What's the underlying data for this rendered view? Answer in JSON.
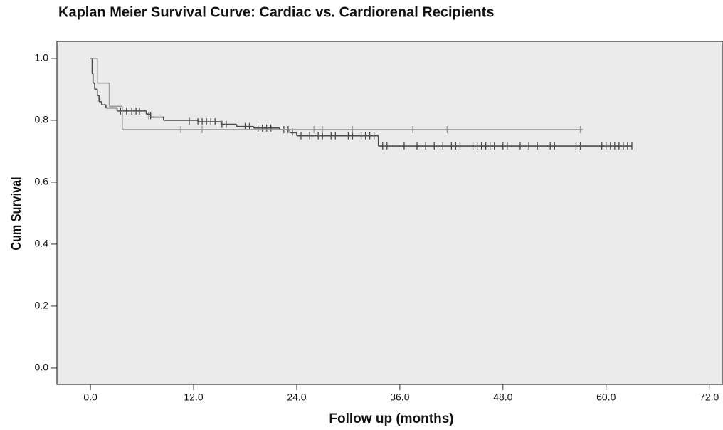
{
  "chart_data": {
    "type": "kaplan-meier",
    "title": "Kaplan Meier Survival Curve: Cardiac vs. Cardiorenal Recipients",
    "x_label": "Follow up (months)",
    "y_label": "Cum Survival",
    "xlim": [
      -3.9,
      73.6
    ],
    "ylim": [
      -0.053,
      1.055
    ],
    "xticks": [
      {
        "value": 0,
        "label": "0.0"
      },
      {
        "value": 12,
        "label": "12.0"
      },
      {
        "value": 24,
        "label": "24.0"
      },
      {
        "value": 36,
        "label": "36.0"
      },
      {
        "value": 48,
        "label": "48.0"
      },
      {
        "value": 60,
        "label": "60.0"
      },
      {
        "value": 72,
        "label": "72.0"
      }
    ],
    "yticks": [
      {
        "value": 0,
        "label": "0.0"
      },
      {
        "value": 0.2,
        "label": "0.2"
      },
      {
        "value": 0.4,
        "label": "0.4"
      },
      {
        "value": 0.6,
        "label": "0.6"
      },
      {
        "value": 0.8,
        "label": "0.8"
      },
      {
        "value": 1,
        "label": "1.0"
      }
    ],
    "background": "#ebebeb",
    "series": [
      {
        "color": "#4a4a4a",
        "x": [
          0,
          0.2,
          0.3,
          0.5,
          0.8,
          1.0,
          1.3,
          1.8,
          3.1,
          6.5,
          7.0,
          8.5,
          12.5,
          15.2,
          17.0,
          19.0,
          22.0,
          23.2,
          24.0,
          33.5,
          63.0
        ],
        "values": [
          1.0,
          0.95,
          0.92,
          0.9,
          0.88,
          0.86,
          0.85,
          0.84,
          0.83,
          0.82,
          0.81,
          0.8,
          0.795,
          0.787,
          0.78,
          0.775,
          0.77,
          0.76,
          0.75,
          0.717,
          0.717
        ],
        "censored_x": [
          3.5,
          4.2,
          4.8,
          5.3,
          5.7,
          6.8,
          7.0,
          11.5,
          12.5,
          13.0,
          13.5,
          14.0,
          14.5,
          15.3,
          15.8,
          18.0,
          18.5,
          19.5,
          20.0,
          20.5,
          21.0,
          22.5,
          23.0,
          23.5,
          24.5,
          25.5,
          26.5,
          27.0,
          28.0,
          28.5,
          30.0,
          30.5,
          31.5,
          32.0,
          32.5,
          33.0,
          34.0,
          34.5,
          36.5,
          38.0,
          39.0,
          40.0,
          41.0,
          42.0,
          42.5,
          43.0,
          44.5,
          45.0,
          45.5,
          46.0,
          46.5,
          47.0,
          48.0,
          48.5,
          50.0,
          51.0,
          52.0,
          53.5,
          54.0,
          56.5,
          57.0,
          59.5,
          60.0,
          60.5,
          61.0,
          61.5,
          62.0,
          62.5,
          63.0
        ],
        "censored_values": [
          0.83,
          0.83,
          0.83,
          0.83,
          0.83,
          0.815,
          0.815,
          0.797,
          0.795,
          0.795,
          0.795,
          0.795,
          0.795,
          0.787,
          0.787,
          0.78,
          0.78,
          0.775,
          0.775,
          0.775,
          0.775,
          0.77,
          0.77,
          0.762,
          0.75,
          0.75,
          0.75,
          0.75,
          0.75,
          0.75,
          0.75,
          0.75,
          0.75,
          0.75,
          0.75,
          0.75,
          0.717,
          0.717,
          0.717,
          0.717,
          0.717,
          0.717,
          0.717,
          0.717,
          0.717,
          0.717,
          0.717,
          0.717,
          0.717,
          0.717,
          0.717,
          0.717,
          0.717,
          0.717,
          0.717,
          0.717,
          0.717,
          0.717,
          0.717,
          0.717,
          0.717,
          0.717,
          0.717,
          0.717,
          0.717,
          0.717,
          0.717,
          0.717,
          0.717
        ]
      },
      {
        "color": "#9a9a9a",
        "x": [
          0,
          0.8,
          2.2,
          3.7,
          57.3
        ],
        "values": [
          1.0,
          0.92,
          0.845,
          0.77,
          0.77
        ],
        "censored_x": [
          10.5,
          13.0,
          26.0,
          27.0,
          30.5,
          37.5,
          41.5,
          57.0
        ],
        "censored_values": [
          0.77,
          0.77,
          0.77,
          0.77,
          0.77,
          0.77,
          0.77,
          0.77
        ]
      }
    ]
  }
}
